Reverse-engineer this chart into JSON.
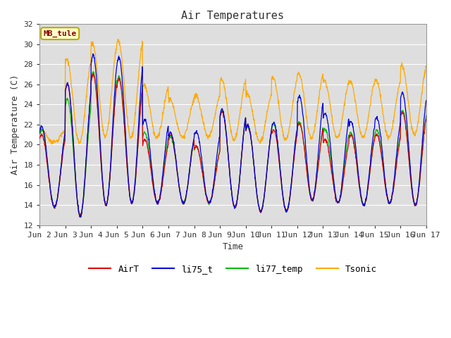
{
  "title": "Air Temperatures",
  "ylabel": "Air Temperature (C)",
  "xlabel": "Time",
  "ylim": [
    12,
    32
  ],
  "xlim": [
    0,
    15
  ],
  "xtick_labels": [
    "Jun 2",
    "Jun 3",
    "Jun 4",
    "Jun 5",
    "Jun 6",
    "Jun 7",
    "Jun 8",
    "Jun 9",
    "Jun 10",
    "Jun 11",
    "Jun 12",
    "Jun 13",
    "Jun 14",
    "Jun 15",
    "Jun 16",
    "Jun 17"
  ],
  "xtick_positions": [
    0,
    1,
    2,
    3,
    4,
    5,
    6,
    7,
    8,
    9,
    10,
    11,
    12,
    13,
    14,
    15
  ],
  "ytick_labels": [
    "12",
    "14",
    "16",
    "18",
    "20",
    "22",
    "24",
    "26",
    "28",
    "30",
    "32"
  ],
  "ytick_positions": [
    12,
    14,
    16,
    18,
    20,
    22,
    24,
    26,
    28,
    30,
    32
  ],
  "colors": {
    "AirT": "#dd0000",
    "li75_t": "#0000dd",
    "li77_temp": "#00bb00",
    "Tsonic": "#ffaa00"
  },
  "plot_bg_color": "#dedede",
  "fig_bg_color": "#ffffff",
  "grid_color": "#ffffff",
  "title_fontsize": 11,
  "axis_label_fontsize": 9,
  "tick_fontsize": 8,
  "legend_fontsize": 9,
  "annotation_text": "MB_tule",
  "annotation_box_facecolor": "#ffffcc",
  "annotation_box_edgecolor": "#bbaa00",
  "annotation_text_color": "#880000"
}
